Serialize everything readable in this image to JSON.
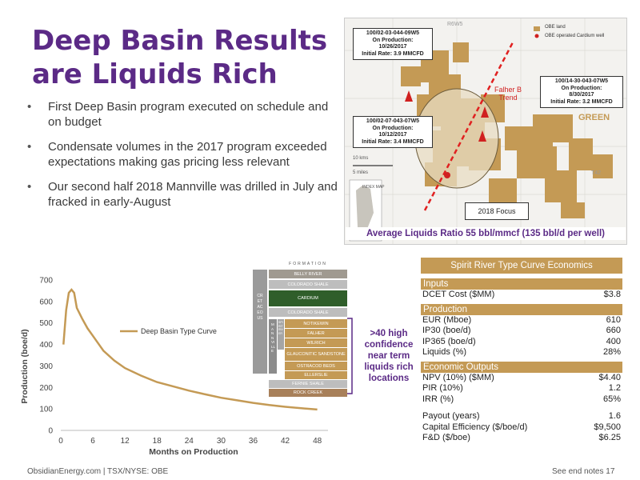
{
  "title_line1": "Deep Basin Results",
  "title_line2": "are Liquids Rich",
  "bullets": [
    "First Deep Basin program executed on schedule and on budget",
    "Condensate volumes in the 2017 program exceeded expectations making gas pricing less relevant",
    "Our second half 2018 Mannville was drilled in July and fracked in early-August"
  ],
  "map": {
    "legend_land": "OBE land",
    "legend_well": "OBE operated Cardium well",
    "range_label": "R6W5",
    "fairway_label_1": "Falher B",
    "fairway_label_2": "Trend",
    "area_label": "GREEN",
    "township_label": "T42",
    "scale_km": "10 kms",
    "scale_mi": "5 miles",
    "index_label": "INDEX MAP",
    "focus_label": "2018 Focus",
    "wells": [
      {
        "id": "100/02-03-044-09W5",
        "line2": "On Production:",
        "date": "10/26/2017",
        "rate": "Initial Rate: 3.9 MMCFD"
      },
      {
        "id": "100/14-30-043-07W5",
        "line2": "On Production:",
        "date": "8/30/2017",
        "rate": "Initial Rate: 3.2 MMCFD"
      },
      {
        "id": "100/02-07-043-07W5",
        "line2": "On Production:",
        "date": "10/12/2017",
        "rate": "Initial Rate: 3.4 MMCFD"
      }
    ],
    "ratio_text": "Average Liquids Ratio 55 bbl/mmcf (135 bbl/d per well)"
  },
  "economics": {
    "title": "Spirit River Type Curve Economics",
    "inputs_head": "Inputs",
    "inputs": [
      {
        "label": "DCET Cost ($MM)",
        "value": "$3.8"
      }
    ],
    "production_head": "Production",
    "production": [
      {
        "label": "EUR (Mboe)",
        "value": "610"
      },
      {
        "label": "IP30 (boe/d)",
        "value": "660"
      },
      {
        "label": "IP365 (boe/d)",
        "value": "400"
      },
      {
        "label": "Liquids (%)",
        "value": "28%"
      }
    ],
    "outputs_head": "Economic Outputs",
    "outputs": [
      {
        "label": "NPV (10%) ($MM)",
        "value": "$4.40"
      },
      {
        "label": "PIR (10%)",
        "value": "1.2"
      },
      {
        "label": "IRR (%)",
        "value": "65%"
      }
    ],
    "outputs2": [
      {
        "label": "Payout (years)",
        "value": "1.6"
      },
      {
        "label": "Capital Efficiency ($/boe/d)",
        "value": "$9,500"
      },
      {
        "label": "F&D ($/boe)",
        "value": "$6.25"
      }
    ]
  },
  "formations": {
    "header": "FORMATION",
    "side_main": "CRETACEOUS",
    "side_sub": "MANNVILLE",
    "side_sub2": "SPIRIT RIVER",
    "layers": [
      "BELLY RIVER",
      "COLORADO SHALE",
      "CARDIUM",
      "COLORADO SHALE",
      "NOTIKEWIN",
      "FALHER",
      "WILRICH",
      "GLAUCONITIC SANDSTONE",
      "OSTRACOD BEDS",
      "ELLERSLIE",
      "FERNIE SHALE",
      "ROCK CREEK"
    ]
  },
  "callout": ">40 high confidence near term liquids rich locations",
  "footer": "ObsidianEnergy.com | TSX/NYSE: OBE",
  "footer_right": "See end notes  17",
  "colors": {
    "purple": "#5b2a86",
    "tan": "#c49a55",
    "green": "#2f5e2a"
  },
  "chart_data": {
    "type": "line",
    "title": "",
    "xlabel": "Months on Production",
    "ylabel": "Production (boe/d)",
    "xlim": [
      0,
      50
    ],
    "ylim": [
      0,
      700
    ],
    "x_ticks": [
      0,
      6,
      12,
      18,
      24,
      30,
      36,
      42,
      48
    ],
    "y_ticks": [
      0,
      100,
      200,
      300,
      400,
      500,
      600,
      700
    ],
    "legend": "left-center",
    "grid": false,
    "series": [
      {
        "name": "Deep Basin Type Curve",
        "color": "#c49a55",
        "points": [
          [
            0.5,
            400
          ],
          [
            1,
            560
          ],
          [
            1.5,
            640
          ],
          [
            2,
            655
          ],
          [
            2.5,
            640
          ],
          [
            3,
            570
          ],
          [
            4,
            520
          ],
          [
            5,
            475
          ],
          [
            6,
            440
          ],
          [
            8,
            370
          ],
          [
            10,
            325
          ],
          [
            12,
            290
          ],
          [
            15,
            255
          ],
          [
            18,
            225
          ],
          [
            21,
            205
          ],
          [
            24,
            185
          ],
          [
            27,
            168
          ],
          [
            30,
            152
          ],
          [
            33,
            140
          ],
          [
            36,
            128
          ],
          [
            39,
            118
          ],
          [
            42,
            110
          ],
          [
            45,
            103
          ],
          [
            48,
            97
          ]
        ]
      }
    ]
  }
}
